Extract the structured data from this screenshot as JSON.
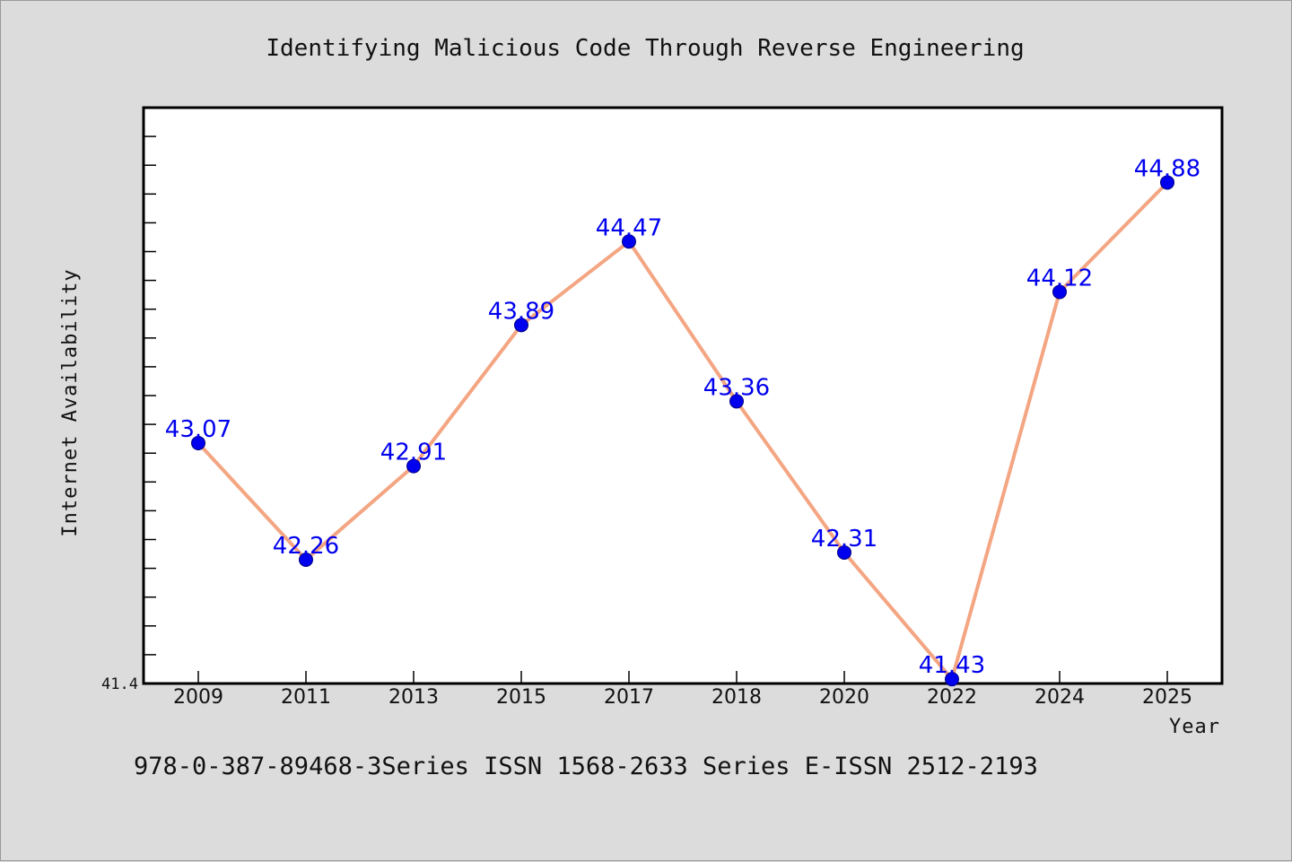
{
  "chart_data": {
    "type": "line",
    "title": "Identifying Malicious Code Through Reverse Engineering",
    "xlabel": "Year",
    "ylabel": "Internet Availability",
    "categories": [
      "2009",
      "2011",
      "2013",
      "2015",
      "2017",
      "2018",
      "2020",
      "2022",
      "2024",
      "2025"
    ],
    "series": [
      {
        "values": [
          43.07,
          42.26,
          42.91,
          43.89,
          44.47,
          43.36,
          42.31,
          41.43,
          44.12,
          44.88
        ]
      }
    ],
    "data_labels": [
      "43.07",
      "42.26",
      "42.91",
      "43.89",
      "44.47",
      "43.36",
      "42.31",
      "41.43",
      "44.12",
      "44.88"
    ],
    "y_tick_label": "41.4",
    "ylim": [
      41.4,
      45.4
    ],
    "grid": false,
    "legend": "none",
    "colors": {
      "line": "#f4a582",
      "marker": "#0000ee",
      "data_label": "#0000ee",
      "plot_background": "#ffffff",
      "page_background": "#dcdcdc"
    }
  },
  "footnote": "978-0-387-89468-3Series ISSN 1568-2633 Series E-ISSN 2512-2193"
}
